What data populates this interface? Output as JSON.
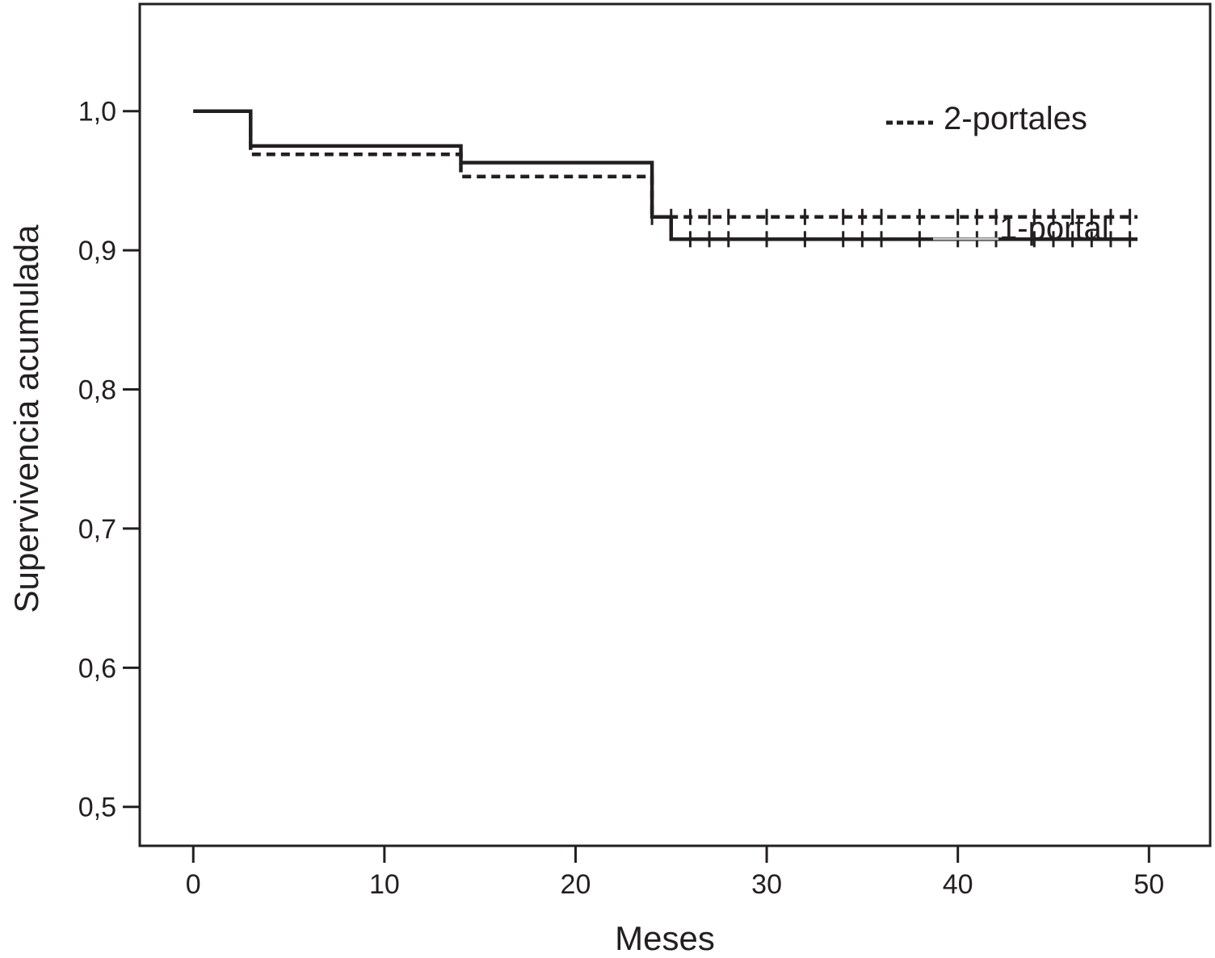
{
  "chart_data": {
    "type": "line",
    "subtype": "kaplan-meier step",
    "xlabel": "Meses",
    "ylabel": "Supervivencia acumulada",
    "xlim": [
      -2.8,
      53.2
    ],
    "ylim": [
      0.472,
      1.077
    ],
    "xticks": [
      0,
      10,
      20,
      30,
      40,
      50
    ],
    "xtick_labels": [
      "0",
      "10",
      "20",
      "30",
      "40",
      "50"
    ],
    "yticks": [
      0.5,
      0.6,
      0.7,
      0.8,
      0.9,
      1.0
    ],
    "ytick_labels": [
      "0,5",
      "0,6",
      "0,7",
      "0,8",
      "0,9",
      "1,0"
    ],
    "grid": false,
    "legend_position": "top-right",
    "series": [
      {
        "name": "2-portales",
        "style": "dashed",
        "color": "#231f20",
        "steps": [
          [
            0,
            1.0
          ],
          [
            3,
            0.969
          ],
          [
            14,
            0.953
          ],
          [
            24,
            0.924
          ],
          [
            49.4,
            0.924
          ]
        ],
        "censored": [
          24,
          25,
          26,
          27,
          28,
          30,
          32,
          34,
          35,
          36,
          38,
          40,
          41,
          42,
          44,
          45,
          46,
          47,
          48,
          49
        ]
      },
      {
        "name": "1-portal",
        "style": "solid",
        "color": "#231f20",
        "legend_color": "#c8c8c8",
        "steps": [
          [
            0,
            1.0
          ],
          [
            3,
            0.975
          ],
          [
            14,
            0.963
          ],
          [
            24,
            0.924
          ],
          [
            25,
            0.908
          ],
          [
            49.4,
            0.908
          ]
        ],
        "censored": [
          26,
          27,
          28,
          30,
          32,
          34,
          35,
          36,
          38,
          40,
          41,
          42,
          44,
          45,
          46,
          47,
          48,
          49
        ]
      }
    ]
  }
}
